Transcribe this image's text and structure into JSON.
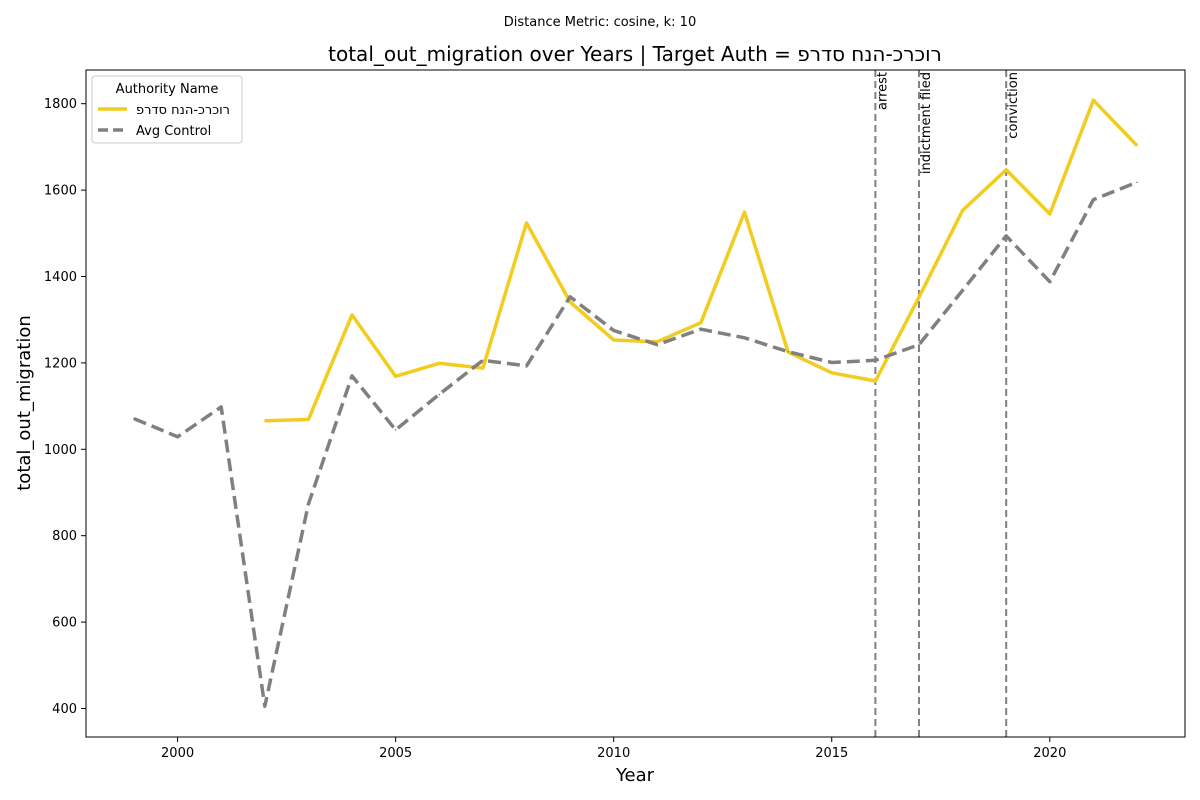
{
  "chart_data": {
    "type": "line",
    "suptitle": "Distance Metric: cosine, k: 10",
    "title": "total_out_migration over Years | Target Auth = רוכרכ-הנח סדרפ",
    "xlabel": "Year",
    "ylabel": "total_out_migration",
    "xlim": [
      1997.9,
      2023.1
    ],
    "ylim": [
      334,
      1878
    ],
    "xticks": [
      2000,
      2005,
      2010,
      2015,
      2020
    ],
    "yticks": [
      400,
      600,
      800,
      1000,
      1200,
      1400,
      1600,
      1800
    ],
    "grid": false,
    "legend": {
      "title": "Authority Name",
      "placement": "top-left"
    },
    "series": [
      {
        "name": "רוכרכ-הנח סדרפ",
        "color": "#f2cc1f",
        "style": "solid",
        "x": [
          2002,
          2003,
          2004,
          2005,
          2006,
          2007,
          2008,
          2009,
          2010,
          2011,
          2012,
          2013,
          2014,
          2015,
          2016,
          2017,
          2018,
          2019,
          2020,
          2021,
          2022
        ],
        "y": [
          1066,
          1069,
          1311,
          1169,
          1199,
          1188,
          1524,
          1341,
          1253,
          1249,
          1293,
          1549,
          1225,
          1177,
          1158,
          1352,
          1553,
          1647,
          1545,
          1808,
          1703
        ]
      },
      {
        "name": "Avg Control",
        "color": "#808080",
        "style": "dashed",
        "x": [
          1999,
          2000,
          2001,
          2002,
          2003,
          2004,
          2005,
          2006,
          2007,
          2008,
          2009,
          2010,
          2011,
          2012,
          2013,
          2014,
          2015,
          2016,
          2017,
          2018,
          2019,
          2020,
          2021,
          2022
        ],
        "y": [
          1071,
          1029,
          1098,
          405,
          873,
          1170,
          1045,
          1127,
          1206,
          1193,
          1353,
          1275,
          1242,
          1278,
          1258,
          1226,
          1201,
          1206,
          1242,
          1368,
          1494,
          1388,
          1578,
          1618
        ]
      }
    ],
    "events": [
      {
        "x": 2016,
        "label": "arrest"
      },
      {
        "x": 2017,
        "label": "indictment filed"
      },
      {
        "x": 2019,
        "label": "conviction"
      }
    ]
  }
}
